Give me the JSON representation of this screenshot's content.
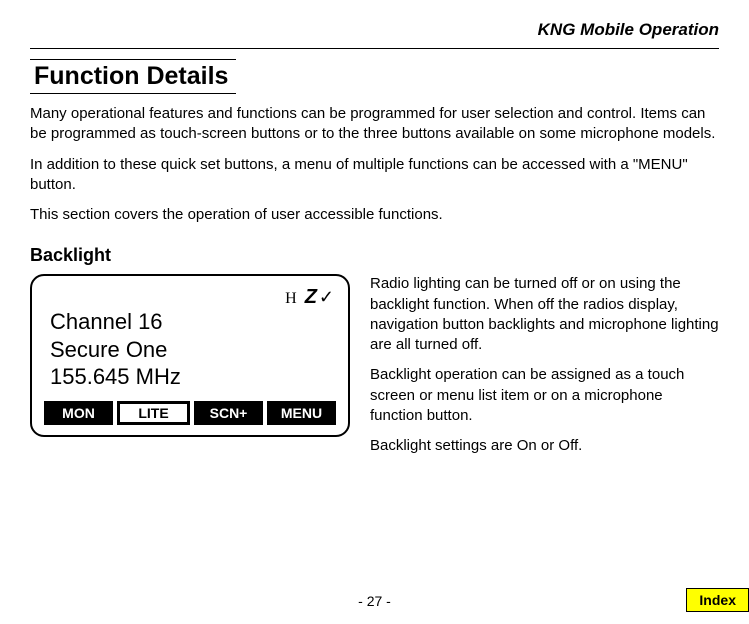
{
  "header": {
    "title": "KNG Mobile Operation"
  },
  "section": {
    "title": "Function Details",
    "paragraphs": [
      "Many operational features and functions can be programmed for user selection and control. Items can be programmed as touch-screen buttons or to the three buttons available on some microphone models.",
      "In addition to these quick set buttons, a menu of multiple functions can be accessed with a \"MENU\" button.",
      "This section covers the operation of user accessible functions."
    ]
  },
  "subsection": {
    "title": "Backlight"
  },
  "radio": {
    "status_h": "H",
    "status_z": "Z",
    "status_check": "✓",
    "line1": "Channel 16",
    "line2": "Secure One",
    "line3": "155.645 MHz",
    "buttons": [
      {
        "label": "MON",
        "highlighted": false
      },
      {
        "label": "LITE",
        "highlighted": true
      },
      {
        "label": "SCN+",
        "highlighted": false
      },
      {
        "label": "MENU",
        "highlighted": false
      }
    ]
  },
  "rightColumn": {
    "paragraphs": [
      "Radio lighting can be turned off or on using the backlight function. When off the radios display, navigation button backlights and microphone lighting are all turned off.",
      "Backlight operation can be assigned as a touch screen or menu list item or on a microphone function button.",
      "Backlight settings are On or Off."
    ]
  },
  "footer": {
    "pageNumber": "- 27 -",
    "indexLabel": "Index"
  },
  "colors": {
    "background": "#ffffff",
    "text": "#000000",
    "buttonBg": "#000000",
    "buttonText": "#ffffff",
    "highlightedBg": "#ffffff",
    "highlightedText": "#000000",
    "indexBg": "#ffff00"
  }
}
